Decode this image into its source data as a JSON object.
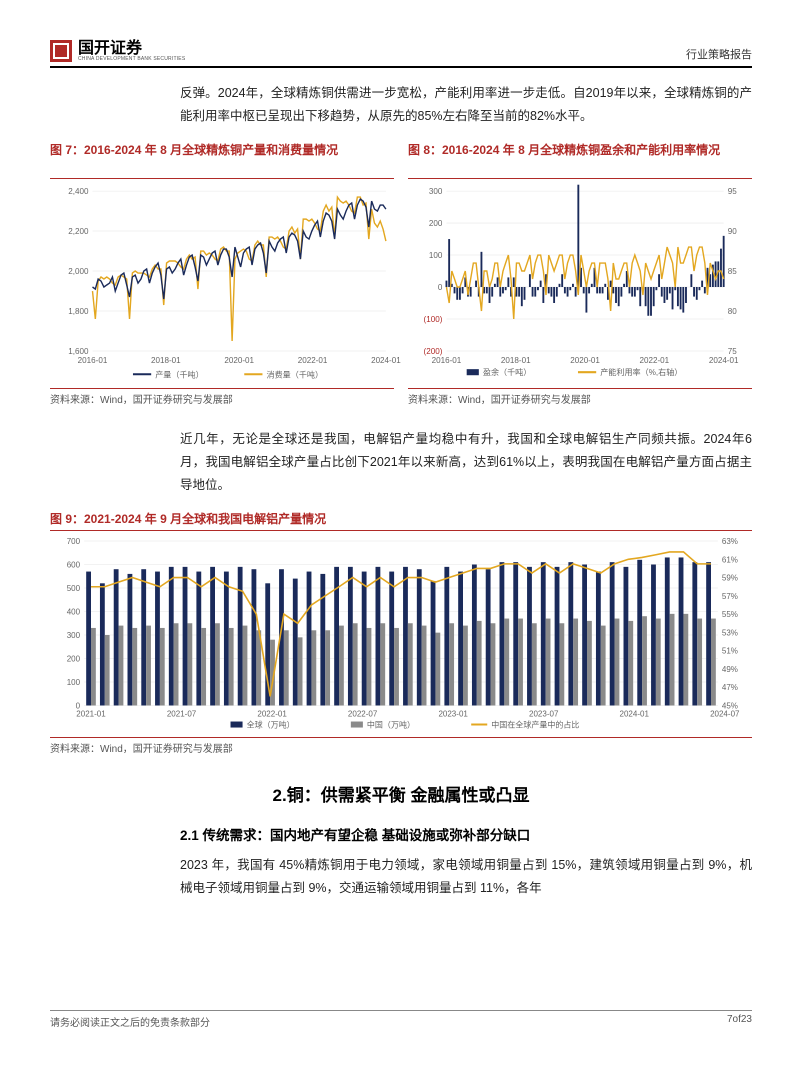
{
  "header": {
    "logo_cn": "国开证券",
    "logo_en": "CHINA DEVELOPMENT BANK SECURITIES",
    "right": "行业策略报告"
  },
  "para1": "反弹。2024年，全球精炼铜供需进一步宽松，产能利用率进一步走低。自2019年以来，全球精炼铜的产能利用率中枢已呈现出下移趋势，从原先的85%左右降至当前的82%水平。",
  "fig7": {
    "title": "图 7：2016-2024 年 8 月全球精炼铜产量和消费量情况",
    "source": "资料来源：Wind，国开证券研究与发展部",
    "x_ticks": [
      "2016-01",
      "2018-01",
      "2020-01",
      "2022-01",
      "2024-01"
    ],
    "y_ticks": [
      1600,
      1800,
      2000,
      2200,
      2400
    ],
    "ylim": [
      1600,
      2400
    ],
    "grid_color": "#e6e6e6",
    "series": {
      "production": {
        "label": "产量（千吨）",
        "color": "#1a2a5a"
      },
      "consumption": {
        "label": "消费量（千吨）",
        "color": "#e3a720"
      }
    },
    "prod_values": [
      1920,
      1910,
      1960,
      1950,
      1920,
      1930,
      1940,
      1970,
      1900,
      1940,
      1980,
      1990,
      1930,
      1870,
      1970,
      1980,
      1940,
      1960,
      2000,
      2010,
      1940,
      1990,
      2020,
      2040,
      1980,
      1860,
      2010,
      2020,
      1990,
      2010,
      2040,
      2060,
      1980,
      2030,
      2070,
      2080,
      2020,
      1950,
      2080,
      2070,
      2030,
      2060,
      2090,
      2100,
      2030,
      2080,
      2110,
      2110,
      2070,
      1970,
      2120,
      2070,
      2020,
      2090,
      2110,
      2120,
      2030,
      2110,
      2130,
      2140,
      2090,
      1990,
      2150,
      2120,
      2100,
      2140,
      2160,
      2170,
      2090,
      2170,
      2190,
      2180,
      2150,
      2060,
      2200,
      2170,
      2160,
      2200,
      2230,
      2250,
      2170,
      2250,
      2290,
      2280,
      2250,
      2160,
      2310,
      2280,
      2260,
      2300,
      2330,
      2340,
      2260,
      2330,
      2360,
      2350,
      2320,
      2220,
      2350,
      2310,
      2300,
      2330,
      2330,
      2310
    ],
    "cons_values": [
      1900,
      1760,
      1950,
      1970,
      1960,
      1970,
      1960,
      1940,
      1930,
      1970,
      1980,
      1970,
      1960,
      1760,
      1990,
      2000,
      1990,
      1990,
      1990,
      1980,
      1970,
      2010,
      2030,
      2010,
      2010,
      1830,
      2040,
      2050,
      2050,
      2050,
      2040,
      2020,
      2010,
      2060,
      2080,
      2060,
      2070,
      1910,
      2100,
      2100,
      2080,
      2090,
      2080,
      2060,
      2050,
      2110,
      2120,
      2100,
      2100,
      1650,
      2060,
      2090,
      2100,
      2110,
      2100,
      2060,
      2050,
      2130,
      2150,
      2130,
      2130,
      1970,
      2170,
      2170,
      2160,
      2170,
      2150,
      2120,
      2110,
      2200,
      2220,
      2190,
      2210,
      2060,
      2260,
      2260,
      2250,
      2260,
      2240,
      2210,
      2200,
      2300,
      2330,
      2300,
      2320,
      2170,
      2370,
      2350,
      2340,
      2350,
      2330,
      2300,
      2290,
      2370,
      2370,
      2330,
      2340,
      2160,
      2310,
      2240,
      2220,
      2250,
      2210,
      2150
    ]
  },
  "fig8": {
    "title": "图 8：2016-2024 年 8 月全球精炼铜盈余和产能利用率情况",
    "source": "资料来源：Wind，国开证券研究与发展部",
    "x_ticks": [
      "2016-01",
      "2018-01",
      "2020-01",
      "2022-01",
      "2024-01"
    ],
    "y_left_ticks": [
      "(200)",
      "(100)",
      "0",
      "100",
      "200",
      "300"
    ],
    "y_left_lim": [
      -200,
      300
    ],
    "y_right_ticks": [
      75,
      80,
      85,
      90,
      95
    ],
    "y_right_lim": [
      75,
      95
    ],
    "grid_color": "#e6e6e6",
    "series": {
      "balance": {
        "label": "盈余（千吨）",
        "color": "#1a2a5a"
      },
      "utilization": {
        "label": "产能利用率（%,右轴）",
        "color": "#e3a720"
      }
    },
    "balance_values": [
      20,
      150,
      10,
      -20,
      -40,
      -40,
      -20,
      30,
      -30,
      -30,
      0,
      20,
      -30,
      110,
      -20,
      -20,
      -50,
      -30,
      10,
      30,
      -30,
      -20,
      -10,
      30,
      -30,
      30,
      -30,
      -30,
      -60,
      -40,
      0,
      40,
      -30,
      -30,
      -10,
      20,
      -50,
      40,
      -20,
      -30,
      -50,
      -30,
      10,
      40,
      -20,
      -30,
      -10,
      10,
      -30,
      320,
      60,
      -20,
      -80,
      -20,
      10,
      60,
      -20,
      -20,
      -20,
      10,
      -40,
      20,
      -20,
      -50,
      -60,
      -30,
      10,
      50,
      -20,
      -30,
      -30,
      -10,
      -60,
      0,
      -60,
      -90,
      -90,
      -60,
      -10,
      40,
      -30,
      -50,
      -40,
      -20,
      -70,
      -10,
      -60,
      -70,
      -80,
      -50,
      0,
      40,
      -30,
      -40,
      -10,
      20,
      -20,
      60,
      40,
      70,
      80,
      80,
      120,
      160
    ],
    "util_values": [
      83,
      81,
      85,
      84,
      83,
      83,
      84,
      85,
      82,
      84,
      86,
      86,
      83,
      80,
      85,
      85,
      83,
      84,
      86,
      86,
      83,
      85,
      86,
      87,
      84,
      79,
      86,
      86,
      85,
      85,
      86,
      87,
      84,
      86,
      87,
      87,
      85,
      82,
      87,
      86,
      85,
      86,
      87,
      87,
      84,
      86,
      87,
      87,
      85,
      82,
      87,
      85,
      83,
      85,
      86,
      86,
      83,
      86,
      86,
      86,
      84,
      80,
      86,
      84,
      84,
      85,
      86,
      86,
      83,
      86,
      87,
      86,
      85,
      82,
      86,
      85,
      84,
      85,
      86,
      87,
      84,
      86,
      88,
      87,
      86,
      83,
      88,
      86,
      86,
      87,
      88,
      88,
      85,
      87,
      88,
      88,
      86,
      82,
      86,
      85,
      84,
      85,
      85,
      84
    ]
  },
  "para2": "近几年，无论是全球还是我国，电解铝产量均稳中有升，我国和全球电解铝生产同频共振。2024年6月，我国电解铝全球产量占比创下2021年以来新高，达到61%以上，表明我国在电解铝产量方面占据主导地位。",
  "fig9": {
    "title": "图 9：2021-2024 年 9 月全球和我国电解铝产量情况",
    "source": "资料来源：Wind，国开证券研究与发展部",
    "x_ticks": [
      "2021-01",
      "2021-07",
      "2022-01",
      "2022-07",
      "2023-01",
      "2023-07",
      "2024-01",
      "2024-07"
    ],
    "y_left_ticks": [
      0,
      100,
      200,
      300,
      400,
      500,
      600,
      700
    ],
    "y_left_lim": [
      0,
      700
    ],
    "y_right_ticks": [
      "45%",
      "47%",
      "49%",
      "51%",
      "53%",
      "55%",
      "57%",
      "59%",
      "61%",
      "63%"
    ],
    "y_right_lim": [
      45,
      63
    ],
    "grid_color": "#e6e6e6",
    "series": {
      "global": {
        "label": "全球（万吨）",
        "color": "#1a2a5a"
      },
      "china": {
        "label": "中国（万吨）",
        "color": "#8a8a8a"
      },
      "share": {
        "label": "中国在全球产量中的占比",
        "color": "#e3a720"
      }
    },
    "global_values": [
      570,
      520,
      580,
      560,
      580,
      570,
      590,
      590,
      570,
      590,
      570,
      590,
      580,
      520,
      580,
      540,
      570,
      560,
      590,
      590,
      570,
      590,
      570,
      590,
      580,
      530,
      590,
      570,
      600,
      580,
      610,
      610,
      590,
      610,
      590,
      610,
      600,
      570,
      610,
      590,
      620,
      600,
      630,
      630,
      610,
      610
    ],
    "china_values": [
      330,
      300,
      340,
      330,
      340,
      330,
      350,
      350,
      330,
      350,
      330,
      340,
      320,
      280,
      320,
      290,
      320,
      320,
      340,
      350,
      330,
      350,
      330,
      350,
      340,
      310,
      350,
      340,
      360,
      350,
      370,
      370,
      350,
      370,
      350,
      370,
      360,
      340,
      370,
      360,
      380,
      370,
      390,
      390,
      370,
      370
    ],
    "share_values": [
      58,
      58,
      58.5,
      59,
      58.5,
      58,
      59,
      59,
      58,
      59,
      58,
      57.5,
      55,
      46,
      55,
      54,
      56,
      57,
      58,
      59,
      58,
      59,
      58,
      59,
      59,
      58.5,
      59,
      59.5,
      60,
      60,
      60.5,
      60.5,
      59.5,
      60.5,
      59.5,
      60.5,
      60,
      59.5,
      60.5,
      61,
      61.2,
      61.5,
      61.8,
      61.8,
      60.5,
      60.5
    ]
  },
  "section2": {
    "h2": "2.铜：供需紧平衡 金融属性或凸显",
    "h3": "2.1 传统需求：国内地产有望企稳 基础设施或弥补部分缺口",
    "p": "2023 年，我国有 45%精炼铜用于电力领域，家电领域用铜量占到 15%，建筑领域用铜量占到 9%，机械电子领域用铜量占到 9%，交通运输领域用铜量占到 11%，各年"
  },
  "footer": {
    "left": "请务必阅读正文之后的免责条款部分",
    "right": "7of23"
  },
  "colors": {
    "brand_red": "#b02a27",
    "navy": "#1a2a5a",
    "gold": "#e3a720",
    "gray": "#8a8a8a"
  }
}
